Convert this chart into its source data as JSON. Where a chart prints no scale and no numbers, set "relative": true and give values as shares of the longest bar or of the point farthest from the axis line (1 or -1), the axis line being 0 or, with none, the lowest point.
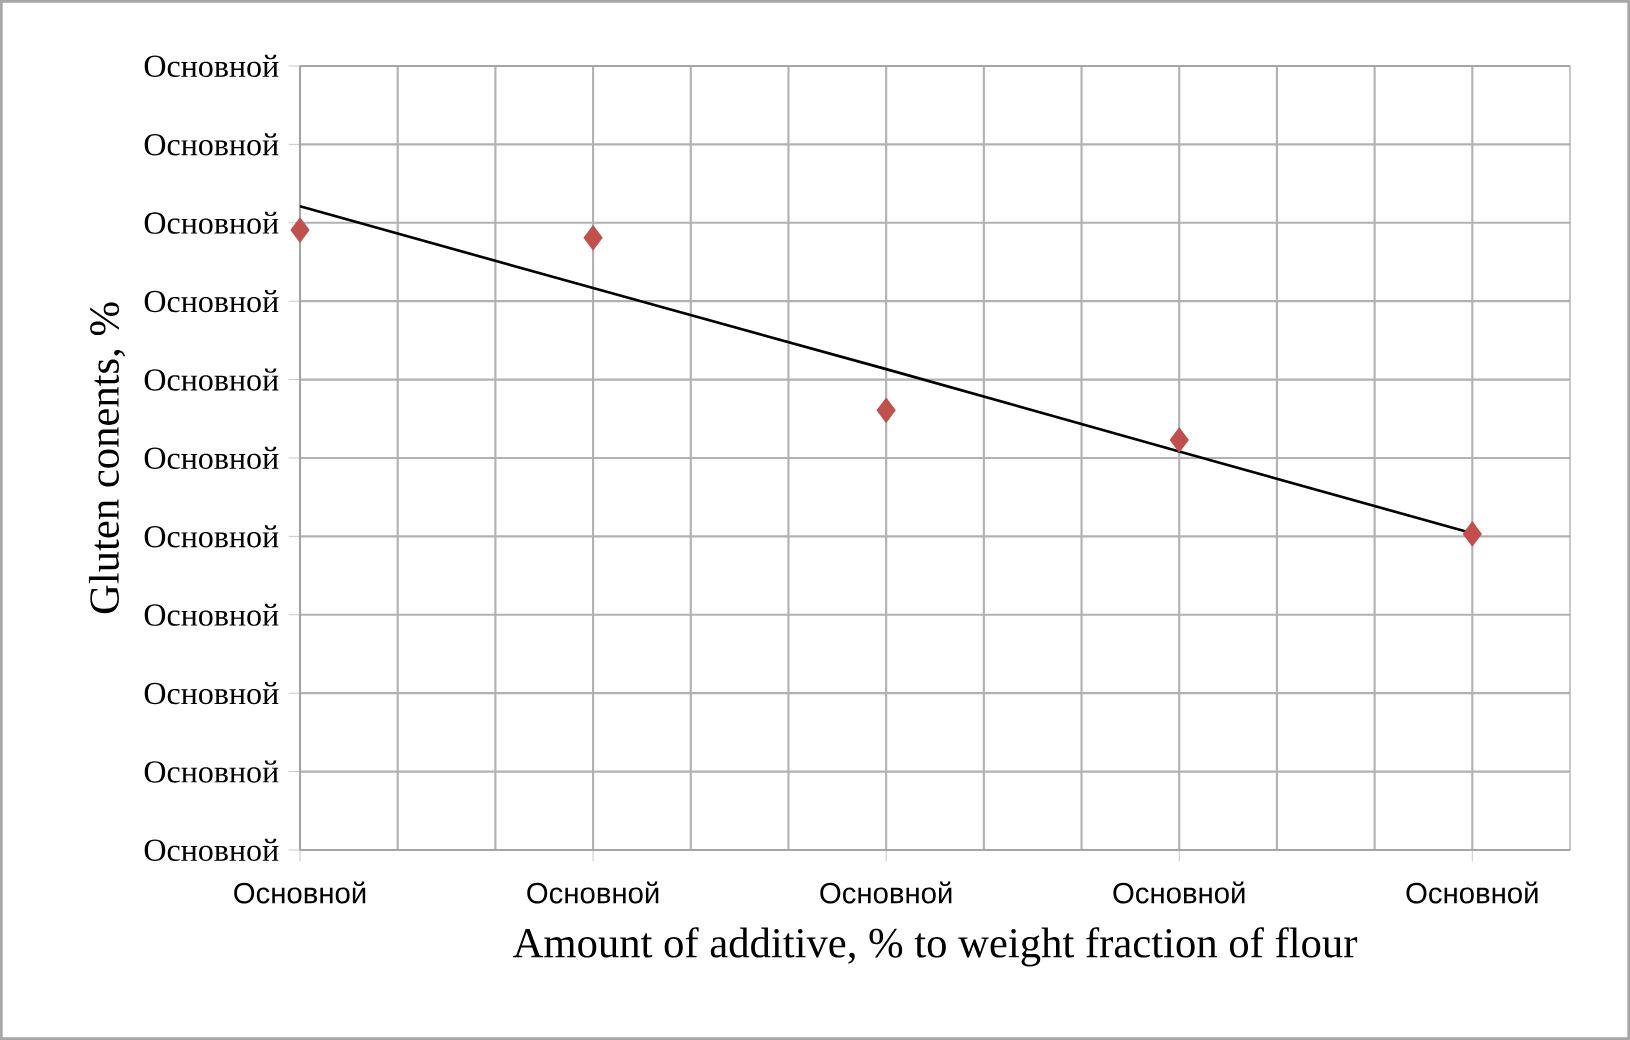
{
  "chart_data": {
    "type": "scatter",
    "xlabel": "Amount of additive,   % to weight fraction of flour",
    "ylabel": "Gluten conents, %",
    "categories": [
      "Основной",
      "Основной",
      "Основной",
      "Основной",
      "Основной"
    ],
    "relative": true,
    "annotations": [
      "Основной",
      "Основной",
      "Основной",
      "Основной",
      "Основной",
      "Основной",
      "Основной",
      "Основной",
      "Основной",
      "Основной",
      "Основной"
    ],
    "grid": true,
    "series": [
      {
        "color": "#c0504d",
        "marker": "diamond",
        "values": [
          0.963,
          0.951,
          0.683,
          0.637,
          0.491
        ]
      },
      {
        "type": "line",
        "color": "#000000",
        "marker": "none",
        "line_style": "solid",
        "values": [
          1,
          0.873,
          0.747,
          0.619,
          0.492
        ]
      }
    ]
  }
}
